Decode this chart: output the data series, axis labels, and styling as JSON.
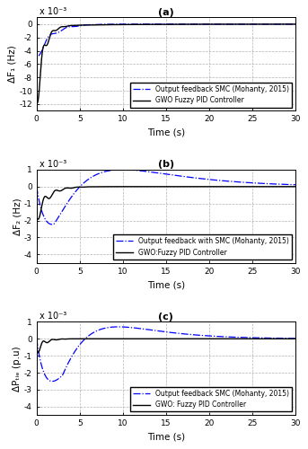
{
  "title_a": "(a)",
  "title_b": "(b)",
  "title_c": "(c)",
  "xlabel": "Time (s)",
  "ylabel_a": "ΔF₁ (Hz)",
  "ylabel_b": "ΔF₂ (Hz)",
  "ylabel_c": "ΔPₜᵢₑ (p.u)",
  "xlim": [
    0,
    30
  ],
  "ylim_a": [
    -0.013,
    0.001
  ],
  "ylim_b": [
    -0.0045,
    0.001
  ],
  "ylim_c": [
    -0.0045,
    0.001
  ],
  "yticks_a": [
    -0.012,
    -0.01,
    -0.008,
    -0.006,
    -0.004,
    -0.002,
    0.0
  ],
  "yticks_b": [
    -0.004,
    -0.003,
    -0.002,
    -0.001,
    0.0,
    0.001
  ],
  "yticks_c": [
    -0.004,
    -0.003,
    -0.002,
    -0.001,
    0.0,
    0.001
  ],
  "xticks": [
    0,
    5,
    10,
    15,
    20,
    25,
    30
  ],
  "legend_a_blue": "Output feedback SMC (Mohanty, 2015)",
  "legend_a_black": "GWO Fuzzy PID Controller",
  "legend_b_blue": "Output feedback with SMC (Mohanty, 2015)",
  "legend_b_black": "GWO:Fuzzy PID Controller",
  "legend_c_blue": "Output feedback SMC (Mohanty, 2015)",
  "legend_c_black": "GWO: Fuzzy PID Controller",
  "color_blue": "#0000FF",
  "color_black": "#000000",
  "grid_color": "#aaaaaa",
  "bg_color": "#ffffff",
  "scale_label": "x 10⁻³"
}
